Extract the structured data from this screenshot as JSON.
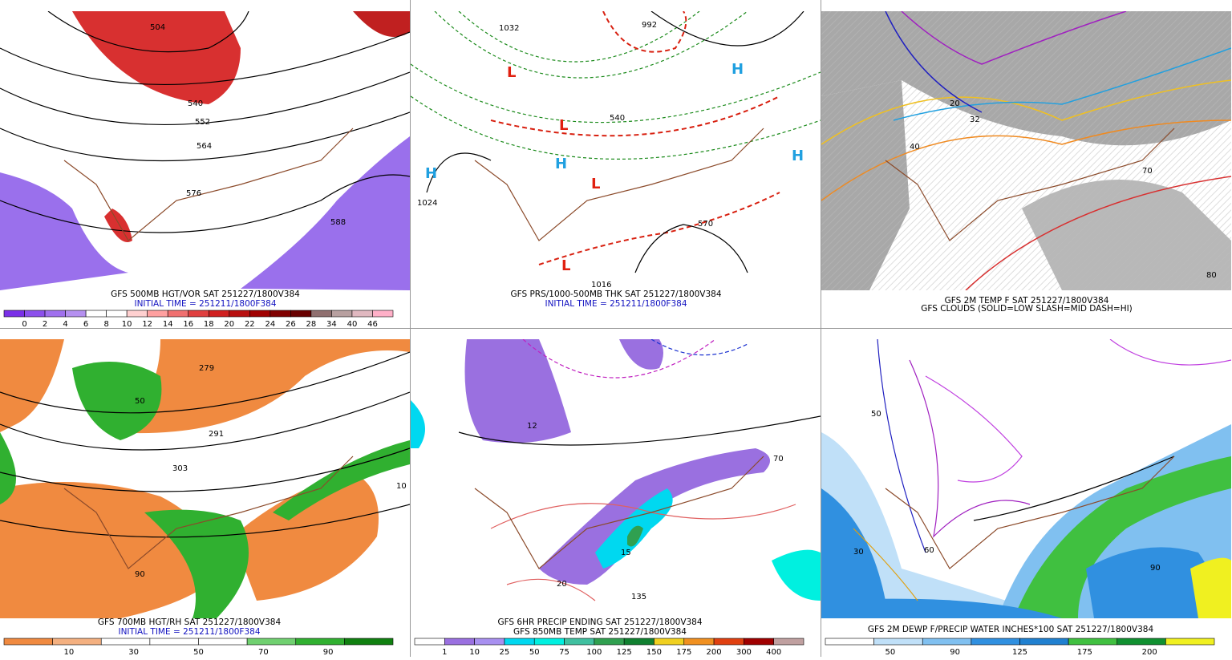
{
  "panels": [
    {
      "caption": [
        "GFS 500MB HGT/VOR SAT 251227/1800V384",
        "INITIAL TIME = 251211/1800F384"
      ],
      "legend": {
        "labels": [
          "0",
          "2",
          "4",
          "6",
          "8",
          "10",
          "12",
          "14",
          "16",
          "18",
          "20",
          "22",
          "24",
          "26",
          "28",
          "34",
          "40",
          "46"
        ],
        "colors": [
          "#7a30e8",
          "#8c50ec",
          "#a070ee",
          "#b590f0",
          "#ffffff",
          "#ffffff",
          "#ffd0d0",
          "#ffa0a0",
          "#f07070",
          "#e04040",
          "#d02020",
          "#b81010",
          "#a00000",
          "#800000",
          "#680000",
          "#907070",
          "#b8a0a0",
          "#e0b8c0",
          "#ffb0c8"
        ]
      },
      "map_labels": [
        "504",
        "540",
        "552",
        "564",
        "576",
        "588"
      ]
    },
    {
      "caption": [
        "GFS PRS/1000-500MB THK SAT 251227/1800V384",
        "INITIAL TIME = 251211/1800F384"
      ],
      "map_labels": [
        "1032",
        "992",
        "1024",
        "1016",
        "540",
        "570"
      ]
    },
    {
      "caption": [
        "GFS 2M TEMP F SAT 251227/1800V384",
        "GFS CLOUDS (SOLID=LOW SLASH=MID DASH=HI)"
      ],
      "map_labels": [
        "20",
        "32",
        "40",
        "70",
        "80"
      ]
    },
    {
      "caption": [
        "GFS 700MB HGT/RH SAT 251227/1800V384",
        "INITIAL TIME = 251211/1800F384"
      ],
      "legend": {
        "labels": [
          "10",
          "30",
          "50",
          "70",
          "90"
        ],
        "colors": [
          "#f08a40",
          "#f4b080",
          "#ffffff",
          "#ffffff",
          "#ffffff",
          "#70d070",
          "#30b030",
          "#108010"
        ]
      },
      "map_labels": [
        "279",
        "291",
        "303",
        "50",
        "90",
        "10"
      ]
    },
    {
      "caption": [
        "GFS 6HR PRECIP ENDING SAT 251227/1800V384",
        "GFS 850MB TEMP SAT 251227/1800V384"
      ],
      "legend": {
        "labels": [
          "1",
          "10",
          "25",
          "50",
          "75",
          "100",
          "125",
          "150",
          "175",
          "200",
          "300",
          "400"
        ],
        "colors": [
          "#ffffff",
          "#9a70e0",
          "#a890f0",
          "#00d8f0",
          "#00f0e0",
          "#40c0a0",
          "#30a050",
          "#108030",
          "#f0d020",
          "#f09020",
          "#e04010",
          "#a00000",
          "#c0a0a0"
        ]
      },
      "map_labels": [
        "12",
        "135",
        "15",
        "70",
        "20"
      ]
    },
    {
      "caption": [
        "GFS 2M DEWP F/PRECIP WATER INCHES*100 SAT 251227/1800V384"
      ],
      "legend": {
        "labels": [
          "50",
          "90",
          "125",
          "175",
          "200"
        ],
        "colors": [
          "#ffffff",
          "#c0e0f8",
          "#80c0f0",
          "#3090e0",
          "#2080d0",
          "#40c040",
          "#109030",
          "#f0f020"
        ]
      },
      "map_labels": [
        "50",
        "30",
        "90",
        "60"
      ]
    }
  ]
}
